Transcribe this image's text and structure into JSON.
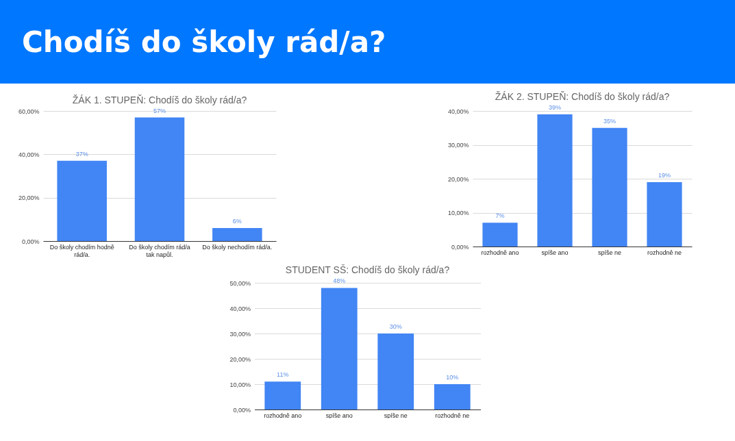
{
  "chart_data": [
    {
      "type": "other",
      "title": "Chodíš do školy rád/a?",
      "color": "#0077ff"
    },
    {
      "type": "bar",
      "title": "ŽÁK 1. STUPEŇ: Chodíš do školy rád/a?",
      "categories": [
        "Do školy chodím hodně rád/a.",
        "Do školy chodím rád/a tak napůl.",
        "Do školy nechodím rád/a."
      ],
      "values": [
        37,
        57,
        6
      ],
      "value_labels": [
        "37%",
        "57%",
        "6%"
      ],
      "color": "#4285f4",
      "ylim": [
        0,
        60
      ],
      "yticks": [
        {
          "value": 0,
          "label": "0,00%"
        },
        {
          "value": 20,
          "label": "20,00%"
        },
        {
          "value": 40,
          "label": "40,00%"
        },
        {
          "value": 60,
          "label": "60,00%"
        }
      ],
      "grid": "y"
    },
    {
      "type": "bar",
      "title": "ŽÁK 2. STUPEŇ: Chodíš do školy rád/a?",
      "categories": [
        "rozhodně ano",
        "spíše ano",
        "spíše ne",
        "rozhodně ne"
      ],
      "values": [
        7,
        39,
        35,
        19
      ],
      "value_labels": [
        "7%",
        "39%",
        "35%",
        "19%"
      ],
      "color": "#4285f4",
      "ylim": [
        0,
        40
      ],
      "yticks": [
        {
          "value": 0,
          "label": "0,00%"
        },
        {
          "value": 10,
          "label": "10,00%"
        },
        {
          "value": 20,
          "label": "20,00%"
        },
        {
          "value": 30,
          "label": "30,00%"
        },
        {
          "value": 40,
          "label": "40,00%"
        }
      ],
      "grid": "y"
    },
    {
      "type": "bar",
      "title": "STUDENT SŠ: Chodíš do školy rád/a?",
      "categories": [
        "rozhodně ano",
        "spíše ano",
        "spíše ne",
        "rozhodně ne"
      ],
      "values": [
        11,
        48,
        30,
        10
      ],
      "value_labels": [
        "11%",
        "48%",
        "30%",
        "10%"
      ],
      "color": "#4285f4",
      "ylim": [
        0,
        50
      ],
      "yticks": [
        {
          "value": 0,
          "label": "0,00%"
        },
        {
          "value": 10,
          "label": "10,00%"
        },
        {
          "value": 20,
          "label": "20,00%"
        },
        {
          "value": 30,
          "label": "30,00%"
        },
        {
          "value": 40,
          "label": "40,00%"
        },
        {
          "value": 50,
          "label": "50,00%"
        }
      ],
      "grid": "y"
    }
  ]
}
